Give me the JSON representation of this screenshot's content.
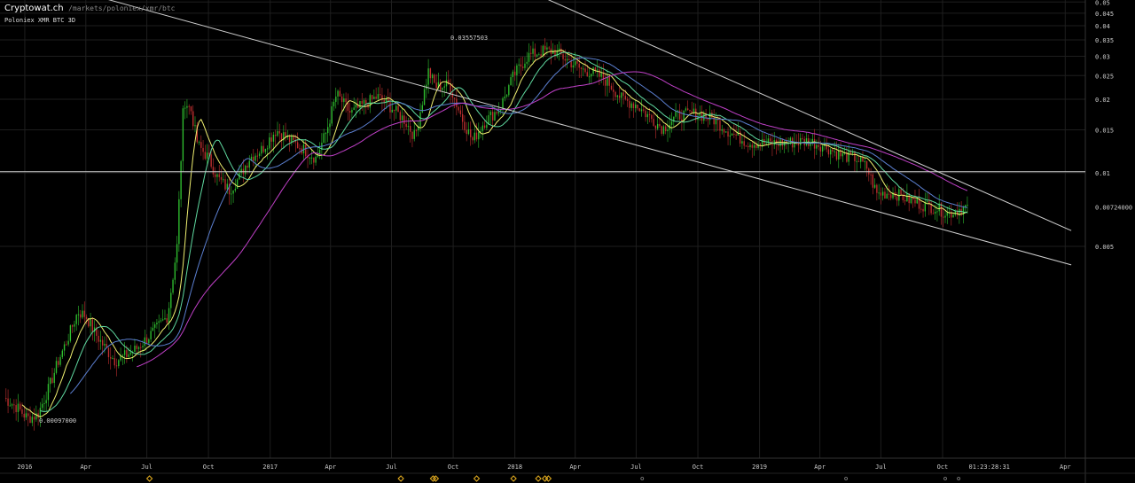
{
  "header": {
    "brand": "Cryptowat.ch",
    "path": "/markets/poloniex/xmr/btc",
    "pair": "Poloniex XMR BTC 3D"
  },
  "colors": {
    "up": "#2fbf2f",
    "down": "#c23030",
    "ma_fast": "#f0f070",
    "ma_mid": "#5fd9a0",
    "ma_slow": "#5b7fd0",
    "ma_long": "#c040c8",
    "trend": "#cfcfcf",
    "grid": "#1e1e1e"
  },
  "chart_data": {
    "type": "candlestick",
    "scale": "log",
    "ylim": [
      0.0007,
      0.05
    ],
    "y_ticks": [
      "0.05",
      "0.045",
      "0.04",
      "0.035",
      "0.03",
      "0.025",
      "0.02",
      "0.015",
      "0.01",
      "0.005"
    ],
    "x_ticks": [
      "2016",
      "Apr",
      "Jul",
      "Oct",
      "2017",
      "Apr",
      "Jul",
      "Oct",
      "2018",
      "Apr",
      "Jul",
      "Oct",
      "2019",
      "Apr",
      "Jul",
      "Oct",
      "Apr"
    ],
    "current_price": "0.00724000",
    "countdown": "01:23:28:31",
    "high_label": "0.03557503",
    "low_label": "0.00097000",
    "horizontal_line": 0.0101,
    "price_path": [
      [
        "2015-12-01",
        0.0012
      ],
      [
        "2015-12-20",
        0.0011
      ],
      [
        "2016-01-05",
        0.00099
      ],
      [
        "2016-01-20",
        0.00102
      ],
      [
        "2016-02-05",
        0.0013
      ],
      [
        "2016-02-20",
        0.0017
      ],
      [
        "2016-03-05",
        0.0021
      ],
      [
        "2016-03-20",
        0.0027
      ],
      [
        "2016-04-01",
        0.0026
      ],
      [
        "2016-04-15",
        0.0022
      ],
      [
        "2016-05-01",
        0.0019
      ],
      [
        "2016-05-15",
        0.0017
      ],
      [
        "2016-06-01",
        0.0018
      ],
      [
        "2016-06-15",
        0.0019
      ],
      [
        "2016-07-01",
        0.0021
      ],
      [
        "2016-07-15",
        0.0023
      ],
      [
        "2016-08-01",
        0.0026
      ],
      [
        "2016-08-15",
        0.005
      ],
      [
        "2016-08-25",
        0.02
      ],
      [
        "2016-09-05",
        0.018
      ],
      [
        "2016-09-15",
        0.013
      ],
      [
        "2016-10-01",
        0.0115
      ],
      [
        "2016-10-15",
        0.0095
      ],
      [
        "2016-11-01",
        0.0085
      ],
      [
        "2016-11-15",
        0.0095
      ],
      [
        "2016-12-01",
        0.0115
      ],
      [
        "2016-12-20",
        0.0125
      ],
      [
        "2017-01-10",
        0.015
      ],
      [
        "2017-02-01",
        0.0135
      ],
      [
        "2017-02-20",
        0.0125
      ],
      [
        "2017-03-10",
        0.0115
      ],
      [
        "2017-03-25",
        0.0145
      ],
      [
        "2017-04-10",
        0.021
      ],
      [
        "2017-05-01",
        0.0175
      ],
      [
        "2017-05-20",
        0.019
      ],
      [
        "2017-06-10",
        0.0205
      ],
      [
        "2017-07-01",
        0.0185
      ],
      [
        "2017-07-20",
        0.0165
      ],
      [
        "2017-08-05",
        0.014
      ],
      [
        "2017-08-25",
        0.026
      ],
      [
        "2017-09-05",
        0.0225
      ],
      [
        "2017-09-25",
        0.023
      ],
      [
        "2017-10-15",
        0.0165
      ],
      [
        "2017-10-30",
        0.0135
      ],
      [
        "2017-11-15",
        0.016
      ],
      [
        "2017-12-10",
        0.0185
      ],
      [
        "2017-12-30",
        0.025
      ],
      [
        "2018-01-20",
        0.03
      ],
      [
        "2018-02-10",
        0.0315
      ],
      [
        "2018-03-01",
        0.0315
      ],
      [
        "2018-03-20",
        0.029
      ],
      [
        "2018-04-10",
        0.0265
      ],
      [
        "2018-05-01",
        0.0255
      ],
      [
        "2018-05-20",
        0.0235
      ],
      [
        "2018-06-10",
        0.02
      ],
      [
        "2018-07-01",
        0.019
      ],
      [
        "2018-07-20",
        0.017
      ],
      [
        "2018-08-10",
        0.0152
      ],
      [
        "2018-09-01",
        0.0172
      ],
      [
        "2018-10-01",
        0.0175
      ],
      [
        "2018-10-25",
        0.0165
      ],
      [
        "2018-11-20",
        0.0145
      ],
      [
        "2018-12-15",
        0.0133
      ],
      [
        "2019-01-15",
        0.0132
      ],
      [
        "2019-02-15",
        0.0133
      ],
      [
        "2019-03-15",
        0.0135
      ],
      [
        "2019-04-10",
        0.0128
      ],
      [
        "2019-05-01",
        0.0118
      ],
      [
        "2019-05-25",
        0.0115
      ],
      [
        "2019-06-10",
        0.0105
      ],
      [
        "2019-06-25",
        0.0082
      ],
      [
        "2019-07-20",
        0.0083
      ],
      [
        "2019-08-10",
        0.0078
      ],
      [
        "2019-09-01",
        0.0074
      ],
      [
        "2019-09-20",
        0.0072
      ],
      [
        "2019-10-10",
        0.0068
      ],
      [
        "2019-10-25",
        0.0071
      ],
      [
        "2019-11-08",
        0.00724
      ]
    ],
    "moving_averages": [
      {
        "key": "ma_fast",
        "window": 3
      },
      {
        "key": "ma_mid",
        "window": 6
      },
      {
        "key": "ma_slow",
        "window": 11
      },
      {
        "key": "ma_long",
        "window": 22
      }
    ],
    "trend_lines": [
      {
        "from": [
          "2015-06-15",
          0.09
        ],
        "to": [
          "2020-04-10",
          0.0042
        ]
      },
      {
        "from": [
          "2017-08-01",
          0.09
        ],
        "to": [
          "2020-04-10",
          0.0058
        ]
      }
    ],
    "event_markers": [
      "2016-07-05",
      "2017-07-15",
      "2017-09-01",
      "2017-09-05",
      "2017-11-05",
      "2017-12-30",
      "2018-02-05",
      "2018-02-15",
      "2018-02-20"
    ],
    "minor_markers": [
      "2018-07-10",
      "2019-05-10",
      "2019-10-05",
      "2019-10-25"
    ]
  }
}
